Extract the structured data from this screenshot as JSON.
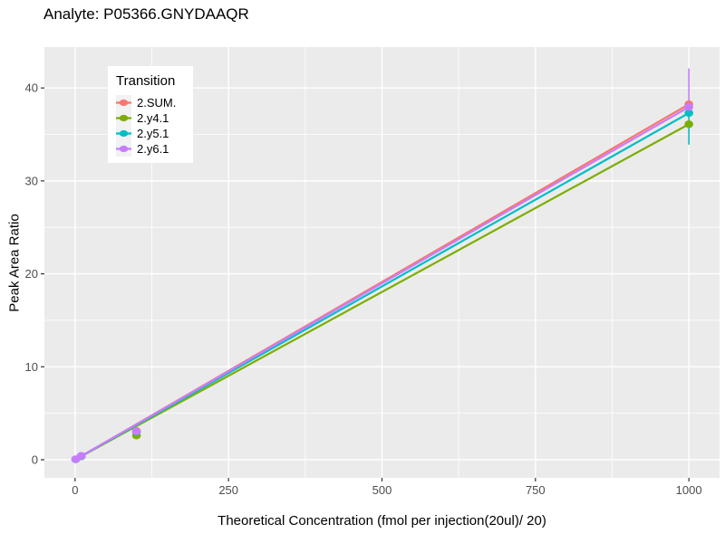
{
  "chart_data": {
    "type": "line",
    "title": "Analyte: P05366.GNYDAAQR",
    "xlabel": "Theoretical Concentration (fmol per injection(20ul)/ 20)",
    "ylabel": "Peak Area Ratio",
    "xlim": [
      -50,
      1050
    ],
    "ylim": [
      -1.95,
      44.4
    ],
    "x_ticks": [
      0,
      250,
      500,
      750,
      1000
    ],
    "y_ticks": [
      0,
      10,
      20,
      30,
      40
    ],
    "x_minor_ticks": [
      125,
      375,
      625,
      875
    ],
    "y_minor_ticks": [
      5,
      15,
      25,
      35
    ],
    "grid": "on",
    "colors": {
      "panel_background": "#EBEBEB",
      "gridline": "#FFFFFF",
      "tick_mark": "#333333",
      "tick_label": "#4D4D4D",
      "legend_key_background": "#F2F2F2"
    },
    "legend": {
      "title": "Transition",
      "position": "top-left-inside"
    },
    "series": [
      {
        "name": "2.SUM.",
        "color": "#F8766D",
        "line": {
          "x": [
            1,
            1000
          ],
          "y": [
            0.04,
            38.25
          ]
        },
        "points": [
          [
            1,
            0.04
          ],
          [
            10,
            0.4
          ],
          [
            100,
            3.1
          ],
          [
            1000,
            38.25
          ]
        ],
        "error_bars": []
      },
      {
        "name": "2.y4.1",
        "color": "#7CAE00",
        "line": {
          "x": [
            1,
            1000
          ],
          "y": [
            0.04,
            36.1
          ]
        },
        "points": [
          [
            1,
            0.04
          ],
          [
            10,
            0.36
          ],
          [
            100,
            2.6
          ],
          [
            1000,
            36.1
          ]
        ],
        "error_bars": []
      },
      {
        "name": "2.y5.1",
        "color": "#00BFC4",
        "line": {
          "x": [
            1,
            1000
          ],
          "y": [
            0.04,
            37.3
          ]
        },
        "points": [
          [
            1,
            0.04
          ],
          [
            10,
            0.38
          ],
          [
            100,
            3.0
          ],
          [
            1000,
            37.3
          ]
        ],
        "error_bars": [
          {
            "x": 1000,
            "ymin": 33.9,
            "ymax": 37.3
          }
        ]
      },
      {
        "name": "2.y6.1",
        "color": "#C77CFF",
        "line": {
          "x": [
            1,
            1000
          ],
          "y": [
            0.05,
            37.95
          ]
        },
        "points": [
          [
            1,
            0.05
          ],
          [
            10,
            0.42
          ],
          [
            100,
            3.05
          ],
          [
            1000,
            37.95
          ]
        ],
        "error_bars": [
          {
            "x": 1000,
            "ymin": 37.95,
            "ymax": 42.1
          }
        ]
      }
    ]
  }
}
